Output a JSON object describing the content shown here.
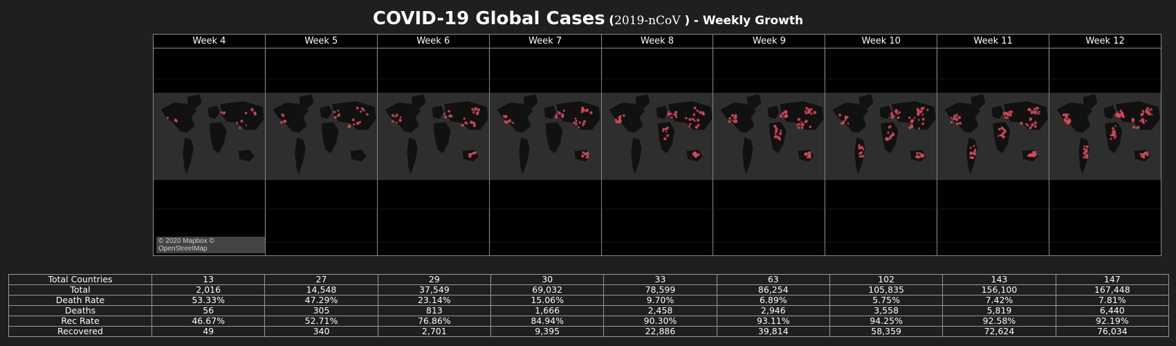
{
  "title": {
    "main": "COVID-19 Global Cases",
    "paren_open": "(",
    "code": "2019-nCoV",
    "paren_close": ")",
    "sub": "- Weekly Growth"
  },
  "weeks": [
    "Week 4",
    "Week 5",
    "Week 6",
    "Week 7",
    "Week 8",
    "Week 9",
    "Week 10",
    "Week 11",
    "Week 12"
  ],
  "map_credit": "© 2020 Mapbox © OpenStreetMap",
  "colors": {
    "case_marker": "#d84a5a",
    "land": "#111111",
    "ocean": "#2e2e2e"
  },
  "stats": [
    {
      "label": "Total Countries",
      "values": [
        "13",
        "27",
        "29",
        "30",
        "33",
        "63",
        "102",
        "143",
        "147"
      ]
    },
    {
      "label": "Total",
      "values": [
        "2,016",
        "14,548",
        "37,549",
        "69,032",
        "78,599",
        "86,254",
        "105,835",
        "156,100",
        "167,448"
      ]
    },
    {
      "label": "Death Rate",
      "values": [
        "53.33%",
        "47.29%",
        "23.14%",
        "15.06%",
        "9.70%",
        "6.89%",
        "5.75%",
        "7.42%",
        "7.81%"
      ]
    },
    {
      "label": "Deaths",
      "values": [
        "56",
        "305",
        "813",
        "1,666",
        "2,458",
        "2,946",
        "3,558",
        "5,819",
        "6,440"
      ]
    },
    {
      "label": "Rec Rate",
      "values": [
        "46.67%",
        "52.71%",
        "76.86%",
        "84.94%",
        "90.30%",
        "93.11%",
        "94.25%",
        "92.58%",
        "92.19%"
      ]
    },
    {
      "label": "Recovered",
      "values": [
        "49",
        "340",
        "2,701",
        "9,395",
        "22,886",
        "39,814",
        "58,359",
        "72,624",
        "76,034"
      ]
    }
  ]
}
